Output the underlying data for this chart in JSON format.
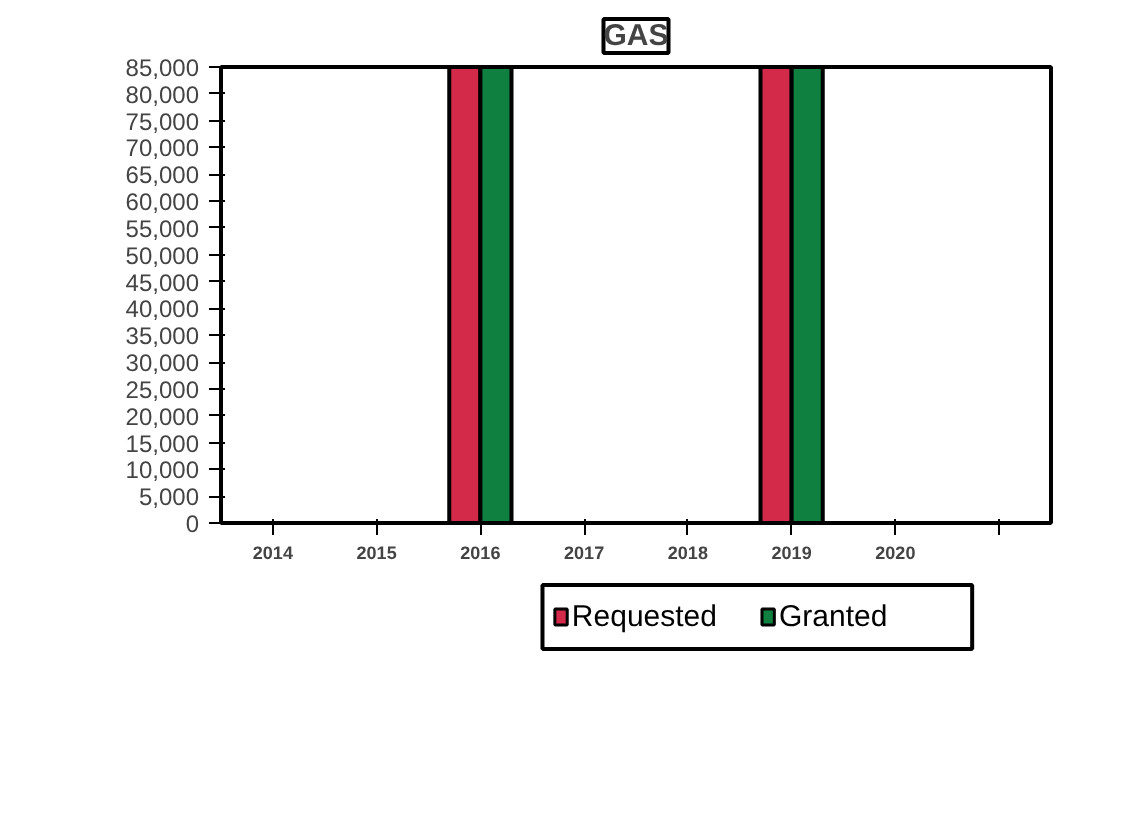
{
  "chart_data": {
    "type": "bar",
    "title": "GAS",
    "categories": [
      "2014",
      "2015",
      "2016",
      "2017",
      "2018",
      "2019",
      "2020",
      null
    ],
    "series": [
      {
        "name": "Requested",
        "color": "#d42a4a",
        "values": [
          null,
          null,
          85000,
          null,
          null,
          85000,
          null,
          null
        ]
      },
      {
        "name": "Granted",
        "color": "#0f8040",
        "values": [
          null,
          null,
          85000,
          null,
          null,
          85000,
          null,
          null
        ]
      }
    ],
    "ylim": [
      0,
      85000
    ],
    "yticks": [
      0,
      {
        "value": 5000,
        "label": "5,000"
      },
      {
        "value": 10000,
        "label": "10,000"
      },
      {
        "value": 15000,
        "label": "15,000"
      },
      {
        "value": 20000,
        "label": "20,000"
      },
      {
        "value": 25000,
        "label": "25,000"
      },
      {
        "value": 30000,
        "label": "30,000"
      },
      {
        "value": 35000,
        "label": "35,000"
      },
      {
        "value": 40000,
        "label": "40,000"
      },
      {
        "value": 45000,
        "label": "45,000"
      },
      {
        "value": 50000,
        "label": "50,000"
      },
      {
        "value": 55000,
        "label": "55,000"
      },
      {
        "value": 60000,
        "label": "60,000"
      },
      {
        "value": 65000,
        "label": "65,000"
      },
      {
        "value": 70000,
        "label": "70,000"
      },
      {
        "value": 75000,
        "label": "75,000"
      },
      {
        "value": 80000,
        "label": "80,000"
      },
      {
        "value": 85000,
        "label": "85,000"
      }
    ],
    "grid": false,
    "legend": "bottom"
  }
}
